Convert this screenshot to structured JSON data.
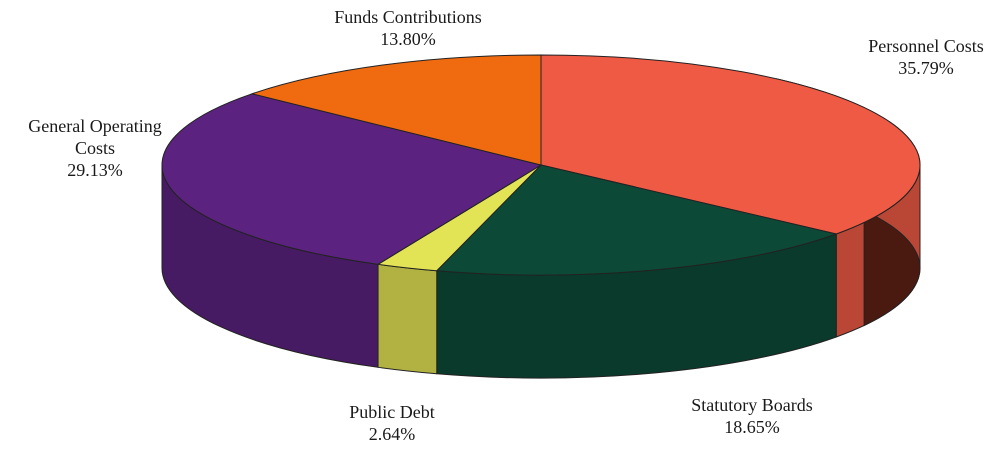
{
  "chart_data": {
    "type": "pie",
    "style": "3d-tilted",
    "title": "",
    "slices": [
      {
        "name": "Personnel Costs",
        "value": 35.79,
        "label_lines": [
          "Personnel Costs"
        ],
        "value_text": "35.79%",
        "color": "#ef5a45"
      },
      {
        "name": "Statutory Boards",
        "value": 18.65,
        "label_lines": [
          "Statutory Boards"
        ],
        "value_text": "18.65%",
        "color": "#0c4a37"
      },
      {
        "name": "Public Debt",
        "value": 2.64,
        "label_lines": [
          "Public Debt"
        ],
        "value_text": "2.64%",
        "color": "#e3e455"
      },
      {
        "name": "General Operating Costs",
        "value": 29.13,
        "label_lines": [
          "General Operating",
          "Costs"
        ],
        "value_text": "29.13%",
        "color": "#5b237f"
      },
      {
        "name": "Funds Contributions",
        "value": 13.8,
        "label_lines": [
          "Funds Contributions"
        ],
        "value_text": "13.80%",
        "color": "#f06a10"
      }
    ]
  }
}
